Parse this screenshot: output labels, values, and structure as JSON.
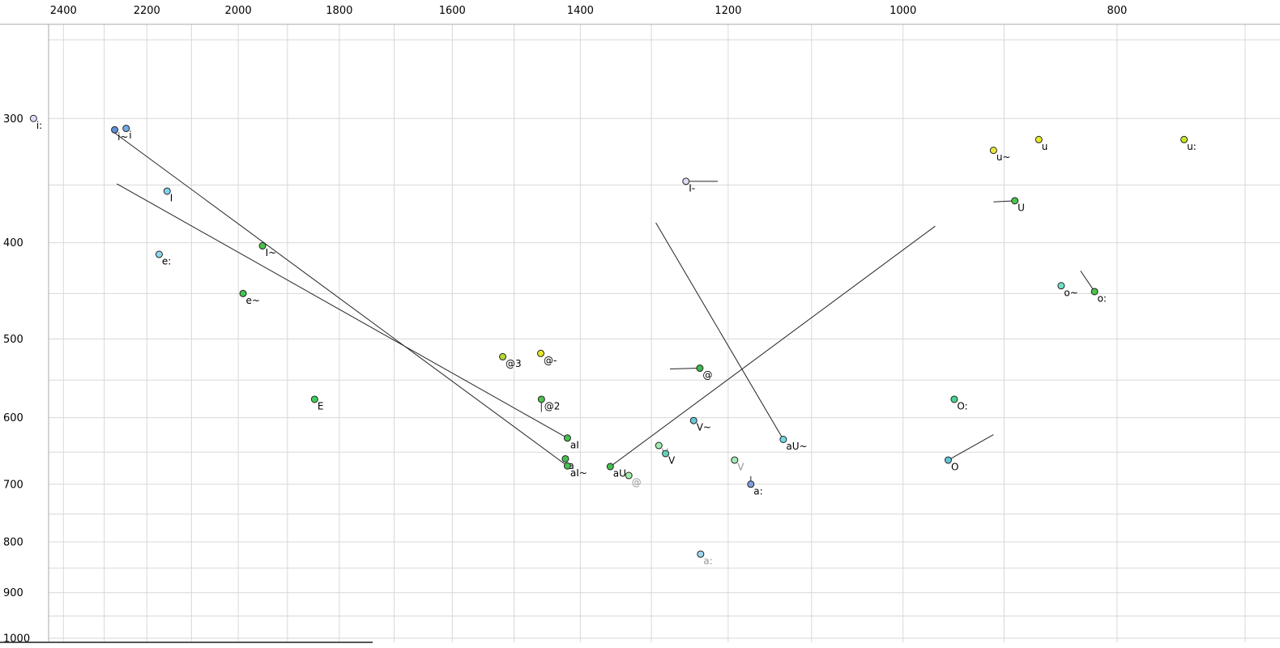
{
  "chart_data": {
    "type": "scatter",
    "title": "",
    "xlabel": "",
    "ylabel": "",
    "description": "Vowel formant plot (F2 horizontal reversed log scale in Hz, F1 vertical downward log scale in Hz) with SAMPA vowel labels and diphthong trajectory lines",
    "x_axis": {
      "domain": [
        2564,
        675
      ],
      "scale": "log",
      "reversed": true,
      "ticks": [
        2400,
        2200,
        2000,
        1800,
        1600,
        1400,
        1200,
        1000,
        800
      ],
      "gridlines": [
        2400,
        2300,
        2200,
        2100,
        2000,
        1900,
        1800,
        1700,
        1600,
        1500,
        1400,
        1300,
        1200,
        1100,
        1000,
        900,
        800,
        700
      ]
    },
    "y_axis": {
      "domain": [
        228,
        1023
      ],
      "scale": "log",
      "reversed": false,
      "ticks": [
        300,
        400,
        500,
        600,
        700,
        800,
        900,
        1000
      ],
      "gridlines": [
        250,
        300,
        350,
        400,
        450,
        500,
        550,
        600,
        650,
        700,
        750,
        800,
        850,
        900,
        950,
        1000
      ]
    },
    "colors": {
      "grid": "#d8d8d8",
      "frame": "#a8a8a8",
      "bottom_edge": "#555555",
      "trail": "#222222",
      "dot_outline": "#222222",
      "tick_text": "#000000"
    },
    "points": [
      {
        "label": "i:",
        "f2": 2476,
        "f1": 300,
        "color": "#dcdcf8",
        "label_color": "#000000"
      },
      {
        "label": "i~",
        "f2": 2275,
        "f1": 308,
        "color": "#5f8fd8",
        "label_color": "#000000"
      },
      {
        "label": "i",
        "f2": 2248,
        "f1": 307,
        "color": "#74aae4",
        "label_color": "#000000"
      },
      {
        "label": "I",
        "f2": 2154,
        "f1": 355,
        "color": "#7fd2ee",
        "label_color": "#000000"
      },
      {
        "label": "e:",
        "f2": 2172,
        "f1": 411,
        "color": "#8fd8f0",
        "label_color": "#000000"
      },
      {
        "label": "I~",
        "f2": 1950,
        "f1": 403,
        "color": "#4cc24c",
        "label_color": "#000000"
      },
      {
        "label": "e~",
        "f2": 1990,
        "f1": 450,
        "color": "#46c24e",
        "label_color": "#000000"
      },
      {
        "label": "E",
        "f2": 1847,
        "f1": 575,
        "color": "#3ecf5a",
        "label_color": "#000000"
      },
      {
        "label": "@3",
        "f2": 1518,
        "f1": 521,
        "color": "#b4d82e",
        "label_color": "#000000"
      },
      {
        "label": "@-",
        "f2": 1459,
        "f1": 517,
        "color": "#e6e82c",
        "label_color": "#000000"
      },
      {
        "label": "@2",
        "f2": 1458,
        "f1": 575,
        "color": "#4cc24c",
        "label_color": "#000000",
        "trail": [
          1458,
          592
        ]
      },
      {
        "label": "aI",
        "f2": 1419,
        "f1": 629,
        "color": "#45c04f",
        "label_color": "#000000",
        "trail": [
          2270,
          349
        ]
      },
      {
        "label": "a",
        "f2": 1422,
        "f1": 660,
        "color": "#45c04f",
        "label_color": "#000000"
      },
      {
        "label": "aI~",
        "f2": 1419,
        "f1": 671,
        "color": "#45c04f",
        "label_color": "#000000",
        "trail": [
          2276,
          310
        ]
      },
      {
        "label": "aU",
        "f2": 1357,
        "f1": 672,
        "color": "#45c04f",
        "label_color": "#000000",
        "trail": [
          967,
          385
        ]
      },
      {
        "label": "@",
        "f2": 1331,
        "f1": 686,
        "color": "#a2eba8",
        "label_color": "#969696"
      },
      {
        "label": "@",
        "f2": 1236,
        "f1": 535,
        "color": "#3cb84c",
        "label_color": "#000000",
        "trail": [
          1275,
          536
        ]
      },
      {
        "label": "V~",
        "f2": 1244,
        "f1": 604,
        "color": "#66c8d8",
        "label_color": "#000000"
      },
      {
        "label": "V",
        "f2": 1290,
        "f1": 640,
        "color": "#a2ebb4",
        "label_color": "#969696"
      },
      {
        "label": "V",
        "f2": 1281,
        "f1": 652,
        "color": "#62d2bc",
        "label_color": "#000000"
      },
      {
        "label": "V",
        "f2": 1192,
        "f1": 662,
        "color": "#a2ebb4",
        "label_color": "#969696"
      },
      {
        "label": "aU~",
        "f2": 1133,
        "f1": 631,
        "color": "#6fd8e8",
        "label_color": "#000000",
        "trail": [
          1294,
          382
        ]
      },
      {
        "label": "a:",
        "f2": 1172,
        "f1": 700,
        "color": "#809ce0",
        "label_color": "#000000",
        "trail": [
          1172,
          687
        ]
      },
      {
        "label": "a:",
        "f2": 1235,
        "f1": 823,
        "color": "#9fd8f0",
        "label_color": "#969696"
      },
      {
        "label": "I-",
        "f2": 1254,
        "f1": 347,
        "color": "#dcdcf8",
        "label_color": "#000000",
        "trail": [
          1213,
          347
        ]
      },
      {
        "label": "O:",
        "f2": 948,
        "f1": 575,
        "color": "#46d48e",
        "label_color": "#000000"
      },
      {
        "label": "O",
        "f2": 954,
        "f1": 662,
        "color": "#5fc8d8",
        "label_color": "#000000",
        "trail": [
          910,
          624
        ]
      },
      {
        "label": "u~",
        "f2": 910,
        "f1": 323,
        "color": "#e8e838",
        "label_color": "#000000"
      },
      {
        "label": "u",
        "f2": 868,
        "f1": 315,
        "color": "#e8e82a",
        "label_color": "#000000"
      },
      {
        "label": "u:",
        "f2": 746,
        "f1": 315,
        "color": "#cbe32a",
        "label_color": "#000000"
      },
      {
        "label": "U",
        "f2": 890,
        "f1": 363,
        "color": "#4cc24c",
        "label_color": "#000000",
        "trail": [
          910,
          364
        ]
      },
      {
        "label": "o~",
        "f2": 848,
        "f1": 442,
        "color": "#6fe0c8",
        "label_color": "#000000"
      },
      {
        "label": "o:",
        "f2": 819,
        "f1": 448,
        "color": "#4cc24c",
        "label_color": "#000000",
        "trail": [
          831,
          427
        ]
      }
    ]
  }
}
